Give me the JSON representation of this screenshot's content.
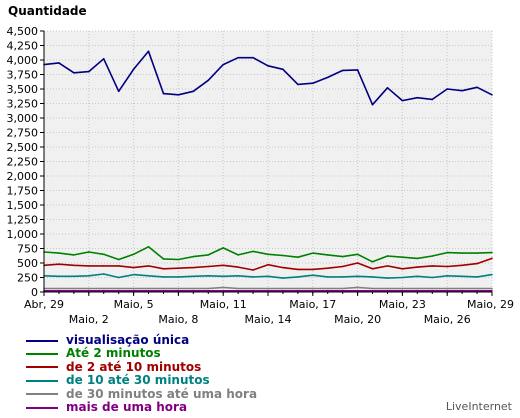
{
  "chart_data": {
    "type": "line",
    "title": "",
    "ylabel": "Quantidade",
    "xlabel": "",
    "ylim": [
      0,
      4500
    ],
    "yticks": [
      "0",
      "250",
      "500",
      "750",
      "1,000",
      "1,250",
      "1,500",
      "1,750",
      "2,000",
      "2,250",
      "2,500",
      "2,750",
      "3,000",
      "3,250",
      "3,500",
      "3,750",
      "4,000",
      "4,250",
      "4,500"
    ],
    "ytick_values": [
      0,
      250,
      500,
      750,
      1000,
      1250,
      1500,
      1750,
      2000,
      2250,
      2500,
      2750,
      3000,
      3250,
      3500,
      3750,
      4000,
      4250,
      4500
    ],
    "x": [
      "Abr, 29",
      "Abr, 30",
      "Maio, 1",
      "Maio, 2",
      "Maio, 3",
      "Maio, 4",
      "Maio, 5",
      "Maio, 6",
      "Maio, 7",
      "Maio, 8",
      "Maio, 9",
      "Maio, 10",
      "Maio, 11",
      "Maio, 12",
      "Maio, 13",
      "Maio, 14",
      "Maio, 15",
      "Maio, 16",
      "Maio, 17",
      "Maio, 18",
      "Maio, 19",
      "Maio, 20",
      "Maio, 21",
      "Maio, 22",
      "Maio, 23",
      "Maio, 24",
      "Maio, 25",
      "Maio, 26",
      "Maio, 27",
      "Maio, 28",
      "Maio, 29"
    ],
    "x_tick_labels": [
      {
        "index": 0,
        "label": "Abr, 29",
        "row": 1
      },
      {
        "index": 3,
        "label": "Maio, 2",
        "row": 2
      },
      {
        "index": 6,
        "label": "Maio, 5",
        "row": 1
      },
      {
        "index": 9,
        "label": "Maio, 8",
        "row": 2
      },
      {
        "index": 12,
        "label": "Maio, 11",
        "row": 1
      },
      {
        "index": 15,
        "label": "Maio, 14",
        "row": 2
      },
      {
        "index": 18,
        "label": "Maio, 17",
        "row": 1
      },
      {
        "index": 21,
        "label": "Maio, 20",
        "row": 2
      },
      {
        "index": 24,
        "label": "Maio, 23",
        "row": 1
      },
      {
        "index": 27,
        "label": "Maio, 26",
        "row": 2
      },
      {
        "index": 30,
        "label": "Maio, 29",
        "row": 1
      }
    ],
    "series": [
      {
        "name": "visualisação única",
        "color": "#000080",
        "values": [
          3920,
          3950,
          3780,
          3800,
          4020,
          3460,
          3840,
          4150,
          3420,
          3400,
          3460,
          3650,
          3920,
          4040,
          4040,
          3900,
          3840,
          3580,
          3600,
          3700,
          3820,
          3830,
          3230,
          3520,
          3300,
          3350,
          3320,
          3500,
          3470,
          3530,
          3400
        ]
      },
      {
        "name": "Até 2 minutos",
        "color": "#008000",
        "values": [
          690,
          670,
          640,
          690,
          650,
          560,
          650,
          780,
          570,
          560,
          610,
          640,
          760,
          640,
          700,
          650,
          630,
          600,
          670,
          640,
          610,
          650,
          520,
          620,
          600,
          580,
          620,
          680,
          670,
          670,
          680
        ]
      },
      {
        "name": "de 2 até 10 minutos",
        "color": "#a00000",
        "values": [
          460,
          480,
          460,
          450,
          450,
          450,
          420,
          450,
          400,
          410,
          420,
          440,
          460,
          430,
          380,
          470,
          420,
          390,
          390,
          410,
          440,
          500,
          400,
          450,
          400,
          430,
          450,
          440,
          460,
          490,
          580
        ]
      },
      {
        "name": "de 10 até 30 minutos",
        "color": "#008080",
        "values": [
          280,
          270,
          270,
          280,
          310,
          250,
          300,
          280,
          260,
          260,
          270,
          280,
          270,
          280,
          260,
          270,
          240,
          260,
          290,
          260,
          260,
          270,
          260,
          240,
          250,
          270,
          250,
          280,
          270,
          260,
          300
        ]
      },
      {
        "name": "de 30 minutos até uma hora",
        "color": "#808080",
        "values": [
          60,
          60,
          60,
          60,
          60,
          60,
          60,
          60,
          60,
          60,
          60,
          60,
          80,
          60,
          60,
          60,
          60,
          60,
          60,
          60,
          60,
          80,
          60,
          60,
          60,
          60,
          60,
          60,
          60,
          60,
          60
        ]
      },
      {
        "name": "mais de uma hora",
        "color": "#800080",
        "values": [
          20,
          20,
          20,
          20,
          20,
          20,
          20,
          20,
          20,
          20,
          20,
          20,
          20,
          20,
          20,
          20,
          20,
          20,
          20,
          20,
          20,
          20,
          20,
          20,
          20,
          20,
          20,
          20,
          20,
          20,
          20
        ]
      }
    ],
    "grid": true,
    "legend_position": "bottom-left"
  },
  "credit": "LiveInternet"
}
